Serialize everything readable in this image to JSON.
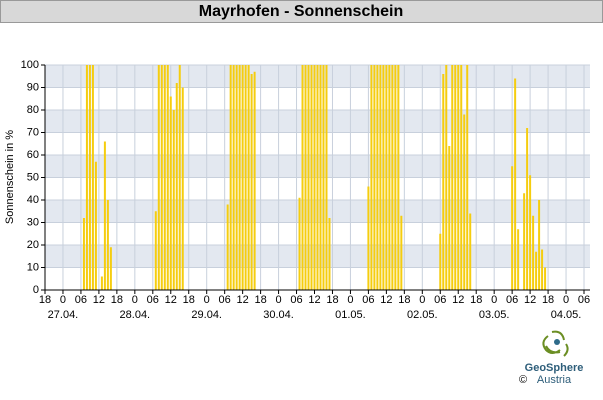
{
  "chart_data": {
    "type": "bar",
    "title": "Mayrhofen - Sonnenschein",
    "y_label": "Sonnenschein in %",
    "xlim": [
      -6,
      176
    ],
    "xticks": [
      {
        "value": -6,
        "label": "18"
      },
      0,
      {
        "value": 6,
        "label": "06"
      },
      12,
      18,
      {
        "value": 24,
        "label": "0"
      },
      {
        "value": 30,
        "label": "06"
      },
      {
        "value": 36,
        "label": "12"
      },
      {
        "value": 42,
        "label": "18"
      },
      {
        "value": 48,
        "label": "0"
      },
      {
        "value": 54,
        "label": "06"
      },
      {
        "value": 60,
        "label": "12"
      },
      {
        "value": 66,
        "label": "18"
      },
      {
        "value": 72,
        "label": "0"
      },
      {
        "value": 78,
        "label": "06"
      },
      {
        "value": 84,
        "label": "12"
      },
      {
        "value": 90,
        "label": "18"
      },
      {
        "value": 96,
        "label": "0"
      },
      {
        "value": 102,
        "label": "06"
      },
      {
        "value": 108,
        "label": "12"
      },
      {
        "value": 114,
        "label": "18"
      },
      {
        "value": 120,
        "label": "0"
      },
      {
        "value": 126,
        "label": "06"
      },
      {
        "value": 132,
        "label": "12"
      },
      {
        "value": 138,
        "label": "18"
      },
      {
        "value": 144,
        "label": "0"
      },
      {
        "value": 150,
        "label": "06"
      },
      {
        "value": 156,
        "label": "12"
      },
      {
        "value": 162,
        "label": "18"
      },
      {
        "value": 168,
        "label": "0"
      },
      {
        "value": 174,
        "label": "06"
      }
    ],
    "date_labels": [
      {
        "value": 0,
        "label": "27.04."
      },
      {
        "value": 24,
        "label": "28.04."
      },
      {
        "value": 48,
        "label": "29.04."
      },
      {
        "value": 72,
        "label": "30.04."
      },
      {
        "value": 96,
        "label": "01.05."
      },
      {
        "value": 120,
        "label": "02.05."
      },
      {
        "value": 144,
        "label": "03.05."
      },
      {
        "value": 168,
        "label": "04.05."
      }
    ],
    "ylim": [
      0,
      100
    ],
    "yticks": [
      0,
      10,
      20,
      30,
      40,
      50,
      60,
      70,
      80,
      90,
      100
    ],
    "grid": true,
    "color": "#f5cd0f",
    "x": [
      7,
      8,
      9,
      10,
      11,
      13,
      14,
      15,
      16,
      31,
      32,
      33,
      34,
      35,
      36,
      37,
      38,
      39,
      40,
      55,
      56,
      57,
      58,
      59,
      60,
      61,
      62,
      63,
      64,
      79,
      80,
      81,
      82,
      83,
      84,
      85,
      86,
      87,
      88,
      89,
      102,
      103,
      104,
      105,
      106,
      107,
      108,
      109,
      110,
      111,
      112,
      113,
      126,
      127,
      128,
      129,
      130,
      131,
      132,
      133,
      134,
      135,
      136,
      150,
      151,
      152,
      154,
      155,
      156,
      157,
      158,
      159,
      160,
      161
    ],
    "values": [
      32,
      100,
      100,
      100,
      57,
      6,
      66,
      40,
      19,
      35,
      100,
      100,
      100,
      100,
      86,
      80,
      92,
      100,
      90,
      38,
      100,
      100,
      100,
      100,
      100,
      100,
      100,
      96,
      97,
      41,
      100,
      100,
      100,
      100,
      100,
      100,
      100,
      100,
      100,
      32,
      46,
      100,
      100,
      100,
      100,
      100,
      100,
      100,
      100,
      100,
      100,
      33,
      25,
      96,
      100,
      64,
      100,
      100,
      100,
      100,
      78,
      100,
      34,
      55,
      94,
      27,
      43,
      72,
      51,
      33,
      17,
      40,
      18,
      10
    ]
  },
  "footer": {
    "logo_name": "GeoSphere",
    "logo_sub": "Austria",
    "copyright": "©"
  }
}
